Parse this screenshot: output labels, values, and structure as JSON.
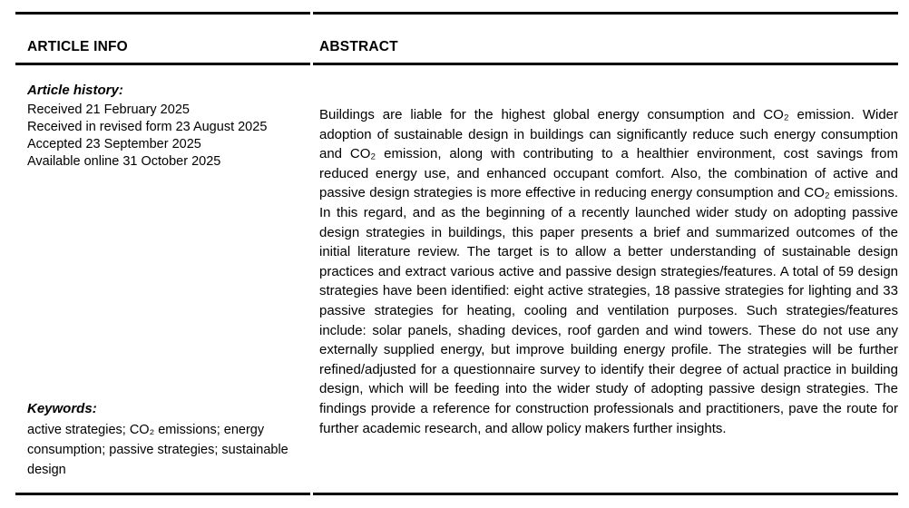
{
  "article_info": {
    "heading": "ARTICLE INFO",
    "history_label": "Article history:",
    "history_lines": [
      "Received 21 February 2025",
      "Received in revised form 23 August 2025",
      "Accepted 23 September 2025",
      "Available online 31 October 2025"
    ],
    "keywords_label": "Keywords:",
    "keywords_text": "active strategies; CO₂ emissions; energy consumption; passive strategies; sustainable design"
  },
  "abstract": {
    "heading": "ABSTRACT",
    "body": "Buildings are liable for the highest global energy consumption and CO₂ emission. Wider adoption of sustainable design in buildings can significantly reduce such energy consumption and CO₂ emission, along with contributing to a healthier environment, cost savings from reduced energy use, and enhanced occupant comfort. Also, the combination of active and passive design strategies is more effective in reducing energy consumption and CO₂ emissions. In this regard, and as the beginning of a recently launched wider study on adopting passive design strategies in buildings, this paper presents a brief and summarized outcomes of the initial literature review. The target is to allow a better understanding of sustainable design practices and extract various active and passive design strategies/features. A total of 59 design strategies have been identified: eight active strategies, 18 passive strategies for lighting and 33 passive strategies for heating, cooling and ventilation purposes. Such strategies/features include: solar panels, shading devices, roof garden and wind towers. These do not use any externally supplied energy, but improve building energy profile. The strategies will be further refined/adjusted for a questionnaire survey to identify their degree of actual practice in building design, which will be feeding into the wider study of adopting passive design strategies. The findings provide a reference for construction professionals and practitioners, pave the route for further academic research, and allow policy makers further insights."
  }
}
